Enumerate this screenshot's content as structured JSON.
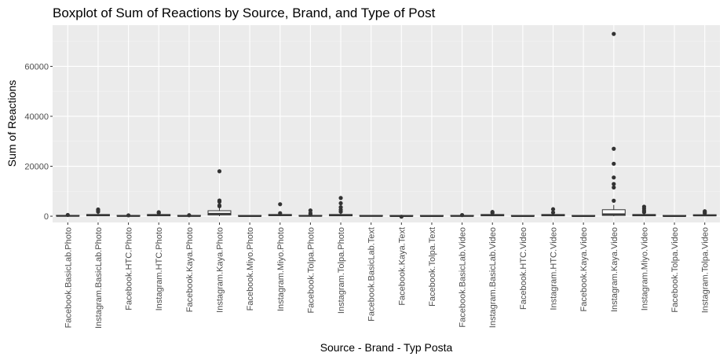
{
  "chart_data": {
    "type": "boxplot",
    "title": "Boxplot of Sum of Reactions by Source, Brand, and Type of Post",
    "xlabel": "Source - Brand - Typ Posta",
    "ylabel": "Sum of Reactions",
    "ylim": [
      -2500,
      76500
    ],
    "yticks": [
      0,
      20000,
      40000,
      60000
    ],
    "ytick_labels": [
      "0",
      "20000",
      "40000",
      "60000"
    ],
    "grid": true,
    "categories": [
      "Facebook.BasicLab.Photo",
      "Instagram.BasicLab.Photo",
      "Facebook.HTC.Photo",
      "Instagram.HTC.Photo",
      "Facebook.Kaya.Photo",
      "Instagram.Kaya.Photo",
      "Facebook.Miyo.Photo",
      "Instagram.Miyo.Photo",
      "Facebook.Tolpa.Photo",
      "Instagram.Tolpa.Photo",
      "Facebook.BasicLab.Text",
      "Facebook.Kaya.Text",
      "Facebook.Tolpa.Text",
      "Facebook.BasicLab.Video",
      "Instagram.BasicLab.Video",
      "Facebook.HTC.Video",
      "Instagram.HTC.Video",
      "Facebook.Kaya.Video",
      "Instagram.Kaya.Video",
      "Instagram.Miyo.Video",
      "Facebook.Tolpa.Video",
      "Instagram.Tolpa.Video"
    ],
    "boxes": [
      {
        "low": 0,
        "q1": 30,
        "median": 80,
        "q3": 180,
        "high": 400,
        "outliers": [
          500
        ]
      },
      {
        "low": 0,
        "q1": 150,
        "median": 350,
        "q3": 700,
        "high": 1200,
        "outliers": [
          1800,
          2300,
          2700
        ]
      },
      {
        "low": 0,
        "q1": 20,
        "median": 50,
        "q3": 120,
        "high": 250,
        "outliers": [
          350
        ]
      },
      {
        "low": 0,
        "q1": 150,
        "median": 350,
        "q3": 700,
        "high": 1000,
        "outliers": [
          1300,
          1600
        ]
      },
      {
        "low": 0,
        "q1": 30,
        "median": 70,
        "q3": 150,
        "high": 300,
        "outliers": [
          400
        ]
      },
      {
        "low": 0,
        "q1": 500,
        "median": 1000,
        "q3": 2200,
        "high": 3500,
        "outliers": [
          4000,
          4300,
          5800,
          6300,
          18000
        ]
      },
      {
        "low": 0,
        "q1": 10,
        "median": 30,
        "q3": 70,
        "high": 150,
        "outliers": []
      },
      {
        "low": 0,
        "q1": 200,
        "median": 400,
        "q3": 700,
        "high": 900,
        "outliers": [
          1200,
          4800
        ]
      },
      {
        "low": 0,
        "q1": 30,
        "median": 80,
        "q3": 180,
        "high": 350,
        "outliers": [
          600,
          1200,
          2300
        ]
      },
      {
        "low": 0,
        "q1": 150,
        "median": 350,
        "q3": 700,
        "high": 1200,
        "outliers": [
          1800,
          2600,
          3600,
          5200,
          7300
        ]
      },
      {
        "low": 0,
        "q1": 20,
        "median": 40,
        "q3": 90,
        "high": 150,
        "outliers": []
      },
      {
        "low": 0,
        "q1": 10,
        "median": 30,
        "q3": 60,
        "high": 100,
        "outliers": [
          -200
        ]
      },
      {
        "low": 0,
        "q1": 10,
        "median": 20,
        "q3": 50,
        "high": 80,
        "outliers": []
      },
      {
        "low": 0,
        "q1": 20,
        "median": 60,
        "q3": 150,
        "high": 300,
        "outliers": [
          450
        ]
      },
      {
        "low": 0,
        "q1": 150,
        "median": 350,
        "q3": 700,
        "high": 1000,
        "outliers": [
          1300,
          1700
        ]
      },
      {
        "low": 0,
        "q1": 10,
        "median": 30,
        "q3": 70,
        "high": 120,
        "outliers": []
      },
      {
        "low": 0,
        "q1": 150,
        "median": 350,
        "q3": 700,
        "high": 1100,
        "outliers": [
          1500,
          2800
        ]
      },
      {
        "low": 0,
        "q1": 10,
        "median": 30,
        "q3": 70,
        "high": 120,
        "outliers": []
      },
      {
        "low": 0,
        "q1": 300,
        "median": 800,
        "q3": 2600,
        "high": 4500,
        "outliers": [
          6200,
          11500,
          12900,
          15500,
          21000,
          27000,
          73000
        ]
      },
      {
        "low": 0,
        "q1": 150,
        "median": 350,
        "q3": 700,
        "high": 1100,
        "outliers": [
          1600,
          2200,
          3000,
          3800
        ]
      },
      {
        "low": 0,
        "q1": 10,
        "median": 30,
        "q3": 60,
        "high": 100,
        "outliers": []
      },
      {
        "low": 0,
        "q1": 150,
        "median": 300,
        "q3": 600,
        "high": 900,
        "outliers": [
          1200,
          1600,
          2000
        ]
      }
    ]
  }
}
